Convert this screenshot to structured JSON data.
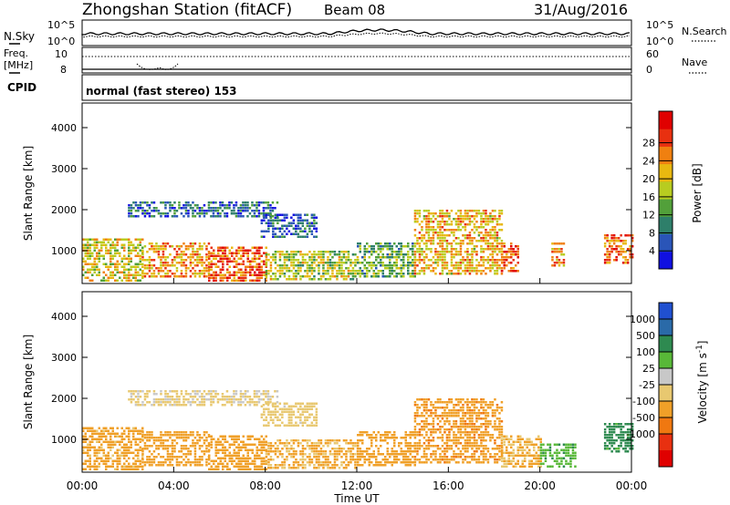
{
  "header": {
    "title": "Zhongshan Station (fitACF)",
    "beam": "Beam 08",
    "date": "31/Aug/2016"
  },
  "noise_panel": {
    "left_label": "N.Sky",
    "left_ticks": [
      "10^5",
      "10^0"
    ],
    "right_ticks": [
      "10^5",
      "10^0"
    ],
    "right_label": "N.Search"
  },
  "freq_panel": {
    "left_label_line1": "Freq.",
    "left_label_line2": "[MHz]",
    "left_ticks": [
      "10",
      "8"
    ],
    "right_ticks": [
      "60",
      "0"
    ],
    "right_label": "Nave"
  },
  "cpid_panel": {
    "label": "CPID",
    "text": "normal (fast stereo) 153"
  },
  "x_axis": {
    "title": "Time UT",
    "tick_labels": [
      "00:00",
      "04:00",
      "08:00",
      "12:00",
      "16:00",
      "20:00",
      "00:00"
    ],
    "range_hours": [
      0,
      24
    ]
  },
  "colors": {
    "power_scale": [
      "#1010e0",
      "#2a55b8",
      "#2e7f6a",
      "#52a03a",
      "#b8cc20",
      "#e8b810",
      "#f08010",
      "#e83010",
      "#e00000"
    ],
    "velocity_scale": [
      "#2050d0",
      "#2a6aa8",
      "#2e8a50",
      "#58b838",
      "#c8c8c8",
      "#e8c870",
      "#f0a028",
      "#f07810",
      "#e83010",
      "#e00000"
    ]
  },
  "chart_data": [
    {
      "type": "heatmap",
      "panel": "power",
      "ylabel": "Slant Range [km]",
      "xlabel": "",
      "ylim": [
        200,
        4600
      ],
      "yticks": [
        1000,
        2000,
        3000,
        4000
      ],
      "xlim": [
        0,
        24
      ],
      "colorbar": {
        "label": "Power [dB]",
        "range": [
          0,
          32
        ],
        "tick_labels": [
          "4",
          "8",
          "12",
          "16",
          "20",
          "24",
          "28"
        ]
      },
      "regions": [
        {
          "t0": 0.0,
          "t1": 2.6,
          "r0": 280,
          "r1": 1300,
          "v": 18
        },
        {
          "t0": 2.6,
          "t1": 5.5,
          "r0": 350,
          "r1": 1200,
          "v": 22
        },
        {
          "t0": 5.5,
          "t1": 8.0,
          "r0": 250,
          "r1": 1100,
          "v": 25
        },
        {
          "t0": 8.0,
          "t1": 12.0,
          "r0": 300,
          "r1": 1000,
          "v": 16
        },
        {
          "t0": 12.0,
          "t1": 14.5,
          "r0": 350,
          "r1": 1200,
          "v": 12
        },
        {
          "t0": 14.5,
          "t1": 18.3,
          "r0": 400,
          "r1": 2000,
          "v": 20
        },
        {
          "t0": 18.3,
          "t1": 19.0,
          "r0": 500,
          "r1": 1200,
          "v": 26
        },
        {
          "t0": 20.5,
          "t1": 21.0,
          "r0": 600,
          "r1": 1200,
          "v": 22
        },
        {
          "t0": 22.8,
          "t1": 24.0,
          "r0": 700,
          "r1": 1400,
          "v": 24
        },
        {
          "t0": 2.0,
          "t1": 8.5,
          "r0": 1800,
          "r1": 2200,
          "v": 7
        },
        {
          "t0": 7.8,
          "t1": 10.2,
          "r0": 1300,
          "r1": 1900,
          "v": 6
        }
      ]
    },
    {
      "type": "heatmap",
      "panel": "velocity",
      "ylabel": "Slant Range [km]",
      "xlabel": "Time UT",
      "ylim": [
        200,
        4600
      ],
      "yticks": [
        1000,
        2000,
        3000,
        4000
      ],
      "xlim": [
        0,
        24
      ],
      "colorbar": {
        "label": "Velocity [m s^-1]",
        "tick_labels": [
          "1000",
          "500",
          "100",
          "25",
          "-25",
          "-100",
          "-500",
          "-1000"
        ]
      },
      "regions": [
        {
          "t0": 0.0,
          "t1": 2.6,
          "r0": 280,
          "r1": 1300,
          "v": -150
        },
        {
          "t0": 2.6,
          "t1": 5.5,
          "r0": 350,
          "r1": 1200,
          "v": -200
        },
        {
          "t0": 5.5,
          "t1": 8.0,
          "r0": 250,
          "r1": 1100,
          "v": -250
        },
        {
          "t0": 8.0,
          "t1": 12.0,
          "r0": 300,
          "r1": 1000,
          "v": -120
        },
        {
          "t0": 12.0,
          "t1": 14.5,
          "r0": 350,
          "r1": 1200,
          "v": -200
        },
        {
          "t0": 14.5,
          "t1": 18.3,
          "r0": 400,
          "r1": 2000,
          "v": -400
        },
        {
          "t0": 18.3,
          "t1": 20.0,
          "r0": 300,
          "r1": 1100,
          "v": -100
        },
        {
          "t0": 20.0,
          "t1": 21.5,
          "r0": 350,
          "r1": 900,
          "v": 80
        },
        {
          "t0": 22.8,
          "t1": 24.0,
          "r0": 700,
          "r1": 1400,
          "v": 150
        },
        {
          "t0": 2.0,
          "t1": 8.5,
          "r0": 1800,
          "r1": 2200,
          "v": -30
        },
        {
          "t0": 7.8,
          "t1": 10.2,
          "r0": 1300,
          "r1": 1900,
          "v": -40
        }
      ]
    }
  ]
}
